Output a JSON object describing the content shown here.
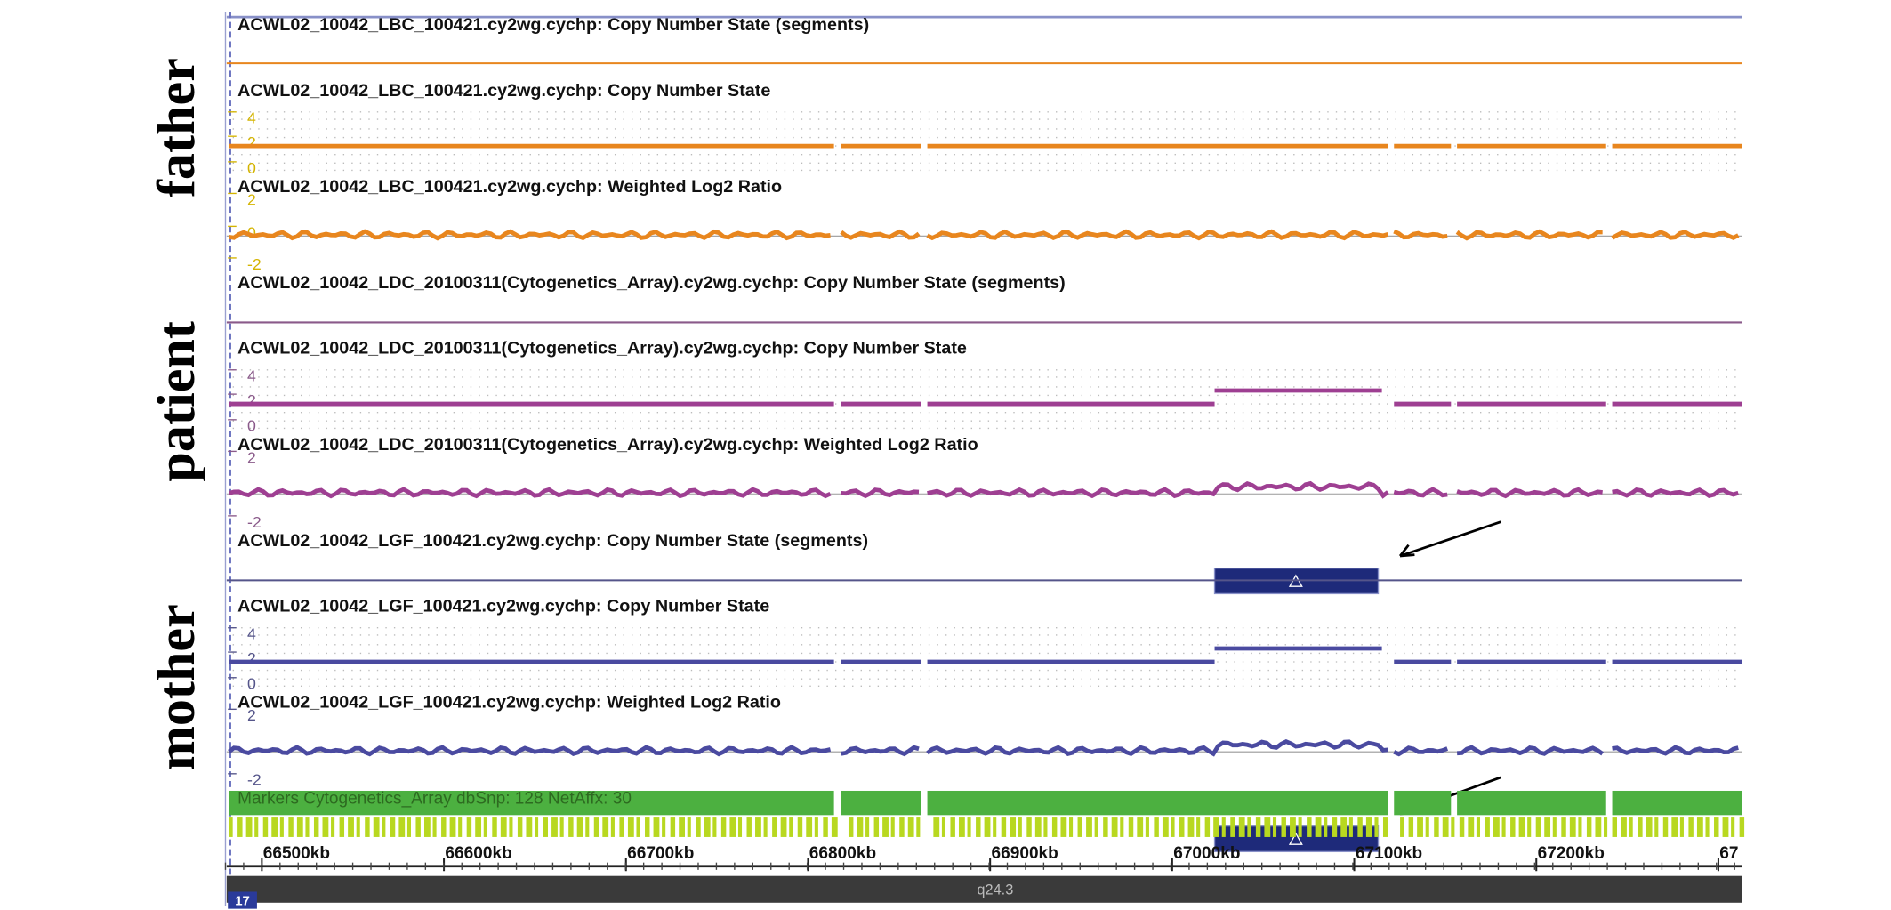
{
  "sample_labels": [
    "father",
    "patient",
    "mother"
  ],
  "tracks": [
    {
      "title": "ACWL02_10042_LBC_100421.cy2wg.cychp: Copy Number State (segments)"
    },
    {
      "title": "ACWL02_10042_LBC_100421.cy2wg.cychp: Copy Number State",
      "axis_labels": [
        "4",
        "2",
        "0"
      ]
    },
    {
      "title": "ACWL02_10042_LBC_100421.cy2wg.cychp: Weighted Log2 Ratio",
      "axis_labels": [
        "2",
        "0",
        "-2"
      ]
    },
    {
      "title": "ACWL02_10042_LDC_20100311(Cytogenetics_Array).cy2wg.cychp: Copy Number State (segments)"
    },
    {
      "title": "ACWL02_10042_LDC_20100311(Cytogenetics_Array).cy2wg.cychp: Copy Number State",
      "axis_labels": [
        "4",
        "2",
        "0"
      ]
    },
    {
      "title": "ACWL02_10042_LDC_20100311(Cytogenetics_Array).cy2wg.cychp: Weighted Log2 Ratio",
      "axis_labels": [
        "2",
        "-2"
      ]
    },
    {
      "title": "ACWL02_10042_LGF_100421.cy2wg.cychp: Copy Number State (segments)"
    },
    {
      "title": "ACWL02_10042_LGF_100421.cy2wg.cychp: Copy Number State",
      "axis_labels": [
        "4",
        "2",
        "0"
      ]
    },
    {
      "title": "ACWL02_10042_LGF_100421.cy2wg.cychp: Weighted Log2 Ratio",
      "axis_labels": [
        "2",
        "-2"
      ]
    }
  ],
  "markers": {
    "label": "Markers Cytogenetics_Array dbSnp: 128 NetAffx: 30"
  },
  "ruler": {
    "labels": [
      "66500kb",
      "66600kb",
      "66700kb",
      "66800kb",
      "66900kb",
      "67000kb",
      "67100kb",
      "67200kb",
      "67"
    ]
  },
  "cytoband": {
    "chromosome": "17",
    "band": "q24.3"
  }
}
